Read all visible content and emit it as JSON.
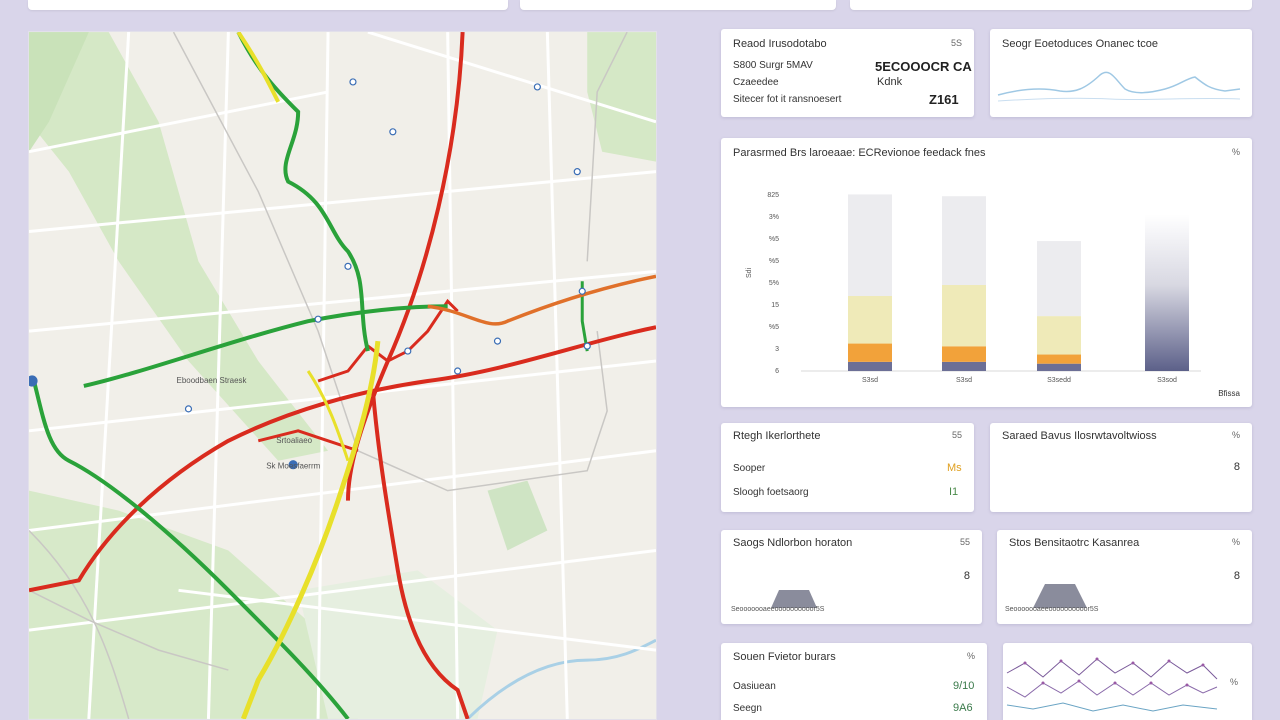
{
  "colors": {
    "route_red": "#d92b1e",
    "route_green": "#2aa23a",
    "route_yellow": "#e8e02a",
    "route_orange": "#e0702a",
    "bar_orange": "#f2a23a",
    "bar_yellow": "#efeab8",
    "bar_grey": "#ececef",
    "bar_blue": "#6c6f96",
    "sparkline": "#9fc8e4"
  },
  "map": {
    "labels": [
      "Eboodbaen Straesk",
      "Srtoaliaeo",
      "Sk Moesfaerrm"
    ]
  },
  "summary_card": {
    "title": "Reaod Irusodotabo",
    "corner": "5S",
    "row1_label": "S800 Surgr 5MAV",
    "row1_value": "5ECOOOCR CA",
    "row2_label": "Czaeedee",
    "row2_value": "Kdnk",
    "row3_label": "Sitecer fot it ransnoesert",
    "row3_value": "Z161"
  },
  "sparkline_card": {
    "title": "Seogr Eoetoduces Onanec tcoe",
    "icon": "trend-sparkline-icon"
  },
  "bar_card": {
    "title": "Parasrmed Brs laroeaae: ECRevionoe  feedack fnes",
    "corner": "%",
    "footer": "Bfissa",
    "y_axis_label": "Sdi",
    "chart_data": {
      "type": "bar",
      "categories": [
        "S3sd",
        "S3sd",
        "S3sedd",
        "S3sod"
      ],
      "y_ticks": [
        "825",
        "3%",
        "%5",
        "%5",
        "5%",
        "15",
        "%5",
        "3",
        "6"
      ],
      "series": [
        {
          "name": "",
          "values": [
            10,
            10,
            8,
            0
          ]
        },
        {
          "name": "",
          "values": [
            20,
            17,
            10,
            0
          ]
        },
        {
          "name": "",
          "values": [
            52,
            67,
            42,
            0
          ]
        },
        {
          "name": "",
          "values": [
            111,
            97,
            82,
            0
          ]
        },
        {
          "name": "",
          "values": [
            0,
            0,
            0,
            171
          ]
        }
      ],
      "ylim": [
        0,
        200
      ]
    }
  },
  "stats_card_1": {
    "title": "Rtegh Ikerlorthete",
    "corner": "55",
    "row1_label": "Sooper",
    "row1_value": "Ms",
    "row2_label": "Sloogh foetsaorg",
    "row2_value": "I1"
  },
  "stats_card_2": {
    "title": "Saraed Bavus Ilosrwtavoltwioss",
    "corner": "%",
    "value": "8"
  },
  "trap_card_1": {
    "title": "Saogs Ndlorbon horaton",
    "corner": "55",
    "value": "8",
    "axis_text": "Seooooooaeeoooooooooor5S"
  },
  "trap_card_2": {
    "title": "Stos Bensitaotrc Kasanrea",
    "corner": "%",
    "value": "8",
    "axis_text": "Seooooooaeeoooooooooor5S"
  },
  "bottom_card_1": {
    "title": "Souen  Fvietor burars",
    "corner": "%",
    "row1_label": "Oasiuean",
    "row1_value": "9/10",
    "row2_label": "Seegn",
    "row2_value": "9A6"
  },
  "bottom_card_2": {
    "icon": "scatter-network-icon",
    "corner": "%"
  }
}
